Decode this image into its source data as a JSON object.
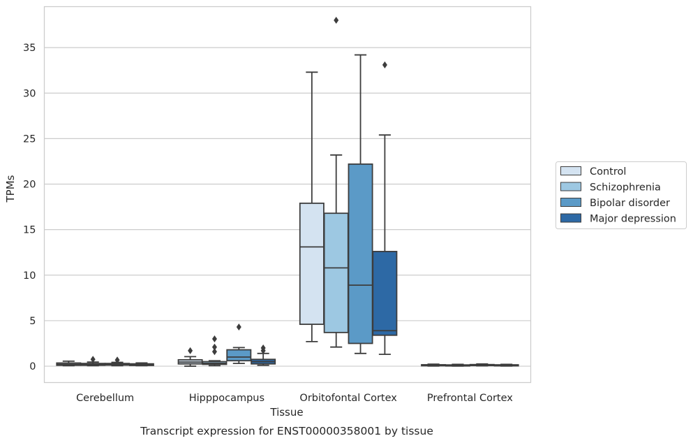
{
  "caption": "Transcript expression for ENST00000358001 by tissue",
  "chart_data": {
    "type": "box",
    "xlabel": "Tissue",
    "ylabel": "TPMs",
    "ylim": [
      -1.8,
      39.5
    ],
    "yticks": [
      0,
      5,
      10,
      15,
      20,
      25,
      30,
      35
    ],
    "grid": "horizontal",
    "legend_position": "right",
    "categories": [
      "Cerebellum",
      "Hipppocampus",
      "Orbitofontal Cortex",
      "Prefrontal Cortex"
    ],
    "series": [
      {
        "name": "Control",
        "color": "#d4e3f1",
        "boxes": [
          {
            "whisker_low": 0.05,
            "q1": 0.1,
            "median": 0.2,
            "q3": 0.35,
            "whisker_high": 0.55,
            "outliers": []
          },
          {
            "whisker_low": 0.0,
            "q1": 0.25,
            "median": 0.45,
            "q3": 0.7,
            "whisker_high": 1.05,
            "outliers": [
              1.7
            ]
          },
          {
            "whisker_low": 2.7,
            "q1": 4.6,
            "median": 13.1,
            "q3": 17.9,
            "whisker_high": 32.3,
            "outliers": []
          },
          {
            "whisker_low": 0.02,
            "q1": 0.06,
            "median": 0.1,
            "q3": 0.16,
            "whisker_high": 0.22,
            "outliers": []
          }
        ]
      },
      {
        "name": "Schizophrenia",
        "color": "#9dc8e2",
        "boxes": [
          {
            "whisker_low": 0.05,
            "q1": 0.1,
            "median": 0.18,
            "q3": 0.3,
            "whisker_high": 0.45,
            "outliers": [
              0.75
            ]
          },
          {
            "whisker_low": 0.05,
            "q1": 0.2,
            "median": 0.32,
            "q3": 0.5,
            "whisker_high": 0.6,
            "outliers": [
              1.6,
              2.1,
              3.0
            ]
          },
          {
            "whisker_low": 2.1,
            "q1": 3.7,
            "median": 10.8,
            "q3": 16.8,
            "whisker_high": 23.2,
            "outliers": [
              38.0
            ]
          },
          {
            "whisker_low": 0.02,
            "q1": 0.05,
            "median": 0.08,
            "q3": 0.14,
            "whisker_high": 0.2,
            "outliers": []
          }
        ]
      },
      {
        "name": "Bipolar disorder",
        "color": "#5b9ac7",
        "boxes": [
          {
            "whisker_low": 0.05,
            "q1": 0.12,
            "median": 0.2,
            "q3": 0.3,
            "whisker_high": 0.42,
            "outliers": [
              0.68
            ]
          },
          {
            "whisker_low": 0.3,
            "q1": 0.6,
            "median": 1.0,
            "q3": 1.8,
            "whisker_high": 2.05,
            "outliers": [
              4.3
            ]
          },
          {
            "whisker_low": 1.4,
            "q1": 2.5,
            "median": 8.9,
            "q3": 22.2,
            "whisker_high": 34.2,
            "outliers": []
          },
          {
            "whisker_low": 0.03,
            "q1": 0.08,
            "median": 0.12,
            "q3": 0.18,
            "whisker_high": 0.24,
            "outliers": []
          }
        ]
      },
      {
        "name": "Major depression",
        "color": "#2d69a5",
        "boxes": [
          {
            "whisker_low": 0.05,
            "q1": 0.08,
            "median": 0.15,
            "q3": 0.26,
            "whisker_high": 0.36,
            "outliers": []
          },
          {
            "whisker_low": 0.1,
            "q1": 0.25,
            "median": 0.5,
            "q3": 0.75,
            "whisker_high": 1.4,
            "outliers": [
              1.7,
              2.0
            ]
          },
          {
            "whisker_low": 1.3,
            "q1": 3.4,
            "median": 3.9,
            "q3": 12.6,
            "whisker_high": 25.4,
            "outliers": [
              33.1
            ]
          },
          {
            "whisker_low": 0.02,
            "q1": 0.06,
            "median": 0.1,
            "q3": 0.15,
            "whisker_high": 0.2,
            "outliers": []
          }
        ]
      }
    ]
  }
}
